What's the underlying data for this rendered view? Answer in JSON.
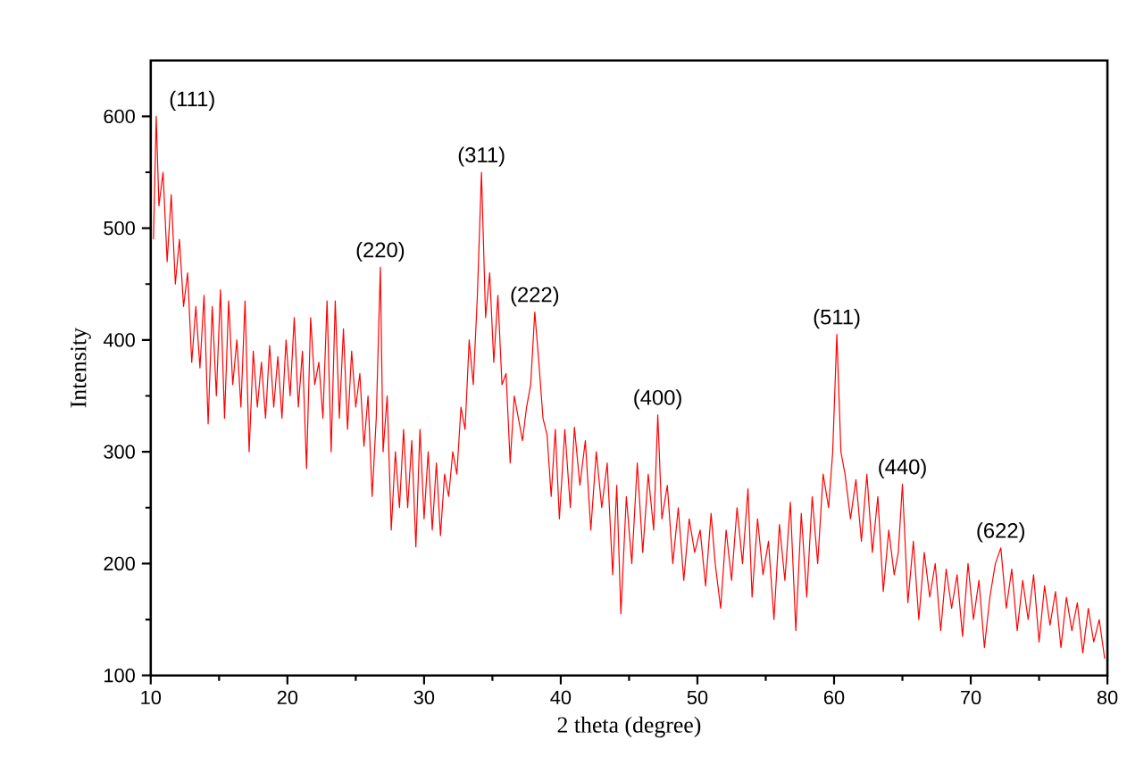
{
  "chart_data": {
    "type": "line",
    "xlabel": "2 theta (degree)",
    "ylabel": "Intensity",
    "xlim": [
      10,
      80
    ],
    "ylim": [
      100,
      650
    ],
    "xticks": [
      10,
      20,
      30,
      40,
      50,
      60,
      70,
      80
    ],
    "yticks": [
      100,
      200,
      300,
      400,
      500,
      600
    ],
    "grid": false,
    "marker": "none",
    "line_style": "solid",
    "annotations": [
      {
        "text": "(111)",
        "x": 10.4,
        "y": 600
      },
      {
        "text": "(220)",
        "x": 26.8,
        "y": 465
      },
      {
        "text": "(311)",
        "x": 34.2,
        "y": 550
      },
      {
        "text": "(222)",
        "x": 38.1,
        "y": 425
      },
      {
        "text": "(400)",
        "x": 47.1,
        "y": 333
      },
      {
        "text": "(511)",
        "x": 60.2,
        "y": 405
      },
      {
        "text": "(440)",
        "x": 65.0,
        "y": 271
      },
      {
        "text": "(622)",
        "x": 72.2,
        "y": 214
      }
    ],
    "series": [
      {
        "color": "#ff0000",
        "x": [
          10.2,
          10.4,
          10.6,
          10.9,
          11.2,
          11.5,
          11.8,
          12.1,
          12.4,
          12.7,
          13.0,
          13.3,
          13.6,
          13.9,
          14.2,
          14.5,
          14.8,
          15.1,
          15.4,
          15.7,
          16.0,
          16.3,
          16.6,
          16.9,
          17.2,
          17.5,
          17.8,
          18.1,
          18.4,
          18.7,
          19.0,
          19.3,
          19.6,
          19.9,
          20.2,
          20.5,
          20.8,
          21.1,
          21.4,
          21.7,
          22.0,
          22.3,
          22.6,
          22.9,
          23.2,
          23.5,
          23.8,
          24.1,
          24.4,
          24.7,
          25.0,
          25.3,
          25.6,
          25.9,
          26.2,
          26.5,
          26.8,
          27.0,
          27.3,
          27.6,
          27.9,
          28.2,
          28.5,
          28.8,
          29.1,
          29.4,
          29.7,
          30.0,
          30.3,
          30.6,
          30.9,
          31.2,
          31.5,
          31.8,
          32.1,
          32.4,
          32.7,
          33.0,
          33.3,
          33.6,
          33.9,
          34.2,
          34.5,
          34.8,
          35.1,
          35.4,
          35.7,
          36.0,
          36.3,
          36.6,
          36.9,
          37.2,
          37.5,
          37.8,
          38.1,
          38.4,
          38.7,
          39.0,
          39.3,
          39.6,
          39.9,
          40.3,
          40.7,
          41.0,
          41.4,
          41.8,
          42.2,
          42.6,
          43.0,
          43.4,
          43.8,
          44.1,
          44.4,
          44.8,
          45.2,
          45.6,
          46.0,
          46.4,
          46.8,
          47.1,
          47.4,
          47.8,
          48.2,
          48.6,
          49.0,
          49.4,
          49.8,
          50.2,
          50.6,
          51.0,
          51.3,
          51.7,
          52.1,
          52.5,
          52.9,
          53.3,
          53.7,
          54.0,
          54.4,
          54.8,
          55.2,
          55.6,
          56.0,
          56.4,
          56.8,
          57.2,
          57.6,
          58.0,
          58.4,
          58.8,
          59.2,
          59.6,
          59.9,
          60.2,
          60.5,
          60.8,
          61.2,
          61.6,
          62.0,
          62.4,
          62.8,
          63.2,
          63.6,
          64.0,
          64.4,
          64.7,
          65.0,
          65.4,
          65.8,
          66.2,
          66.6,
          67.0,
          67.4,
          67.8,
          68.2,
          68.6,
          69.0,
          69.4,
          69.8,
          70.2,
          70.6,
          71.0,
          71.4,
          71.8,
          72.2,
          72.6,
          73.0,
          73.4,
          73.8,
          74.2,
          74.6,
          75.0,
          75.4,
          75.8,
          76.2,
          76.6,
          77.0,
          77.4,
          77.8,
          78.2,
          78.6,
          79.0,
          79.4,
          79.8
        ],
        "values": [
          490,
          600,
          520,
          550,
          470,
          530,
          450,
          490,
          430,
          460,
          380,
          430,
          375,
          440,
          325,
          430,
          350,
          445,
          330,
          435,
          360,
          400,
          340,
          435,
          300,
          390,
          340,
          380,
          330,
          395,
          340,
          385,
          330,
          400,
          350,
          420,
          340,
          390,
          285,
          420,
          360,
          380,
          330,
          435,
          300,
          435,
          330,
          410,
          320,
          390,
          340,
          370,
          305,
          350,
          260,
          330,
          465,
          300,
          350,
          230,
          300,
          250,
          320,
          250,
          310,
          215,
          320,
          240,
          300,
          230,
          290,
          225,
          280,
          260,
          300,
          280,
          340,
          320,
          400,
          360,
          440,
          550,
          420,
          460,
          380,
          440,
          360,
          370,
          290,
          350,
          330,
          310,
          340,
          360,
          425,
          380,
          330,
          315,
          260,
          320,
          240,
          320,
          250,
          322,
          270,
          310,
          230,
          300,
          250,
          290,
          190,
          270,
          155,
          260,
          200,
          290,
          210,
          280,
          230,
          333,
          240,
          270,
          200,
          250,
          185,
          240,
          210,
          230,
          180,
          245,
          200,
          160,
          230,
          185,
          250,
          200,
          267,
          170,
          240,
          190,
          220,
          150,
          235,
          185,
          255,
          140,
          245,
          170,
          260,
          200,
          280,
          250,
          300,
          405,
          300,
          280,
          240,
          275,
          220,
          280,
          210,
          260,
          175,
          230,
          190,
          210,
          271,
          165,
          220,
          150,
          210,
          170,
          200,
          140,
          195,
          160,
          190,
          135,
          200,
          150,
          185,
          125,
          170,
          200,
          214,
          160,
          195,
          140,
          185,
          150,
          190,
          130,
          180,
          145,
          175,
          125,
          170,
          140,
          165,
          120,
          160,
          130,
          150,
          115
        ]
      }
    ]
  }
}
